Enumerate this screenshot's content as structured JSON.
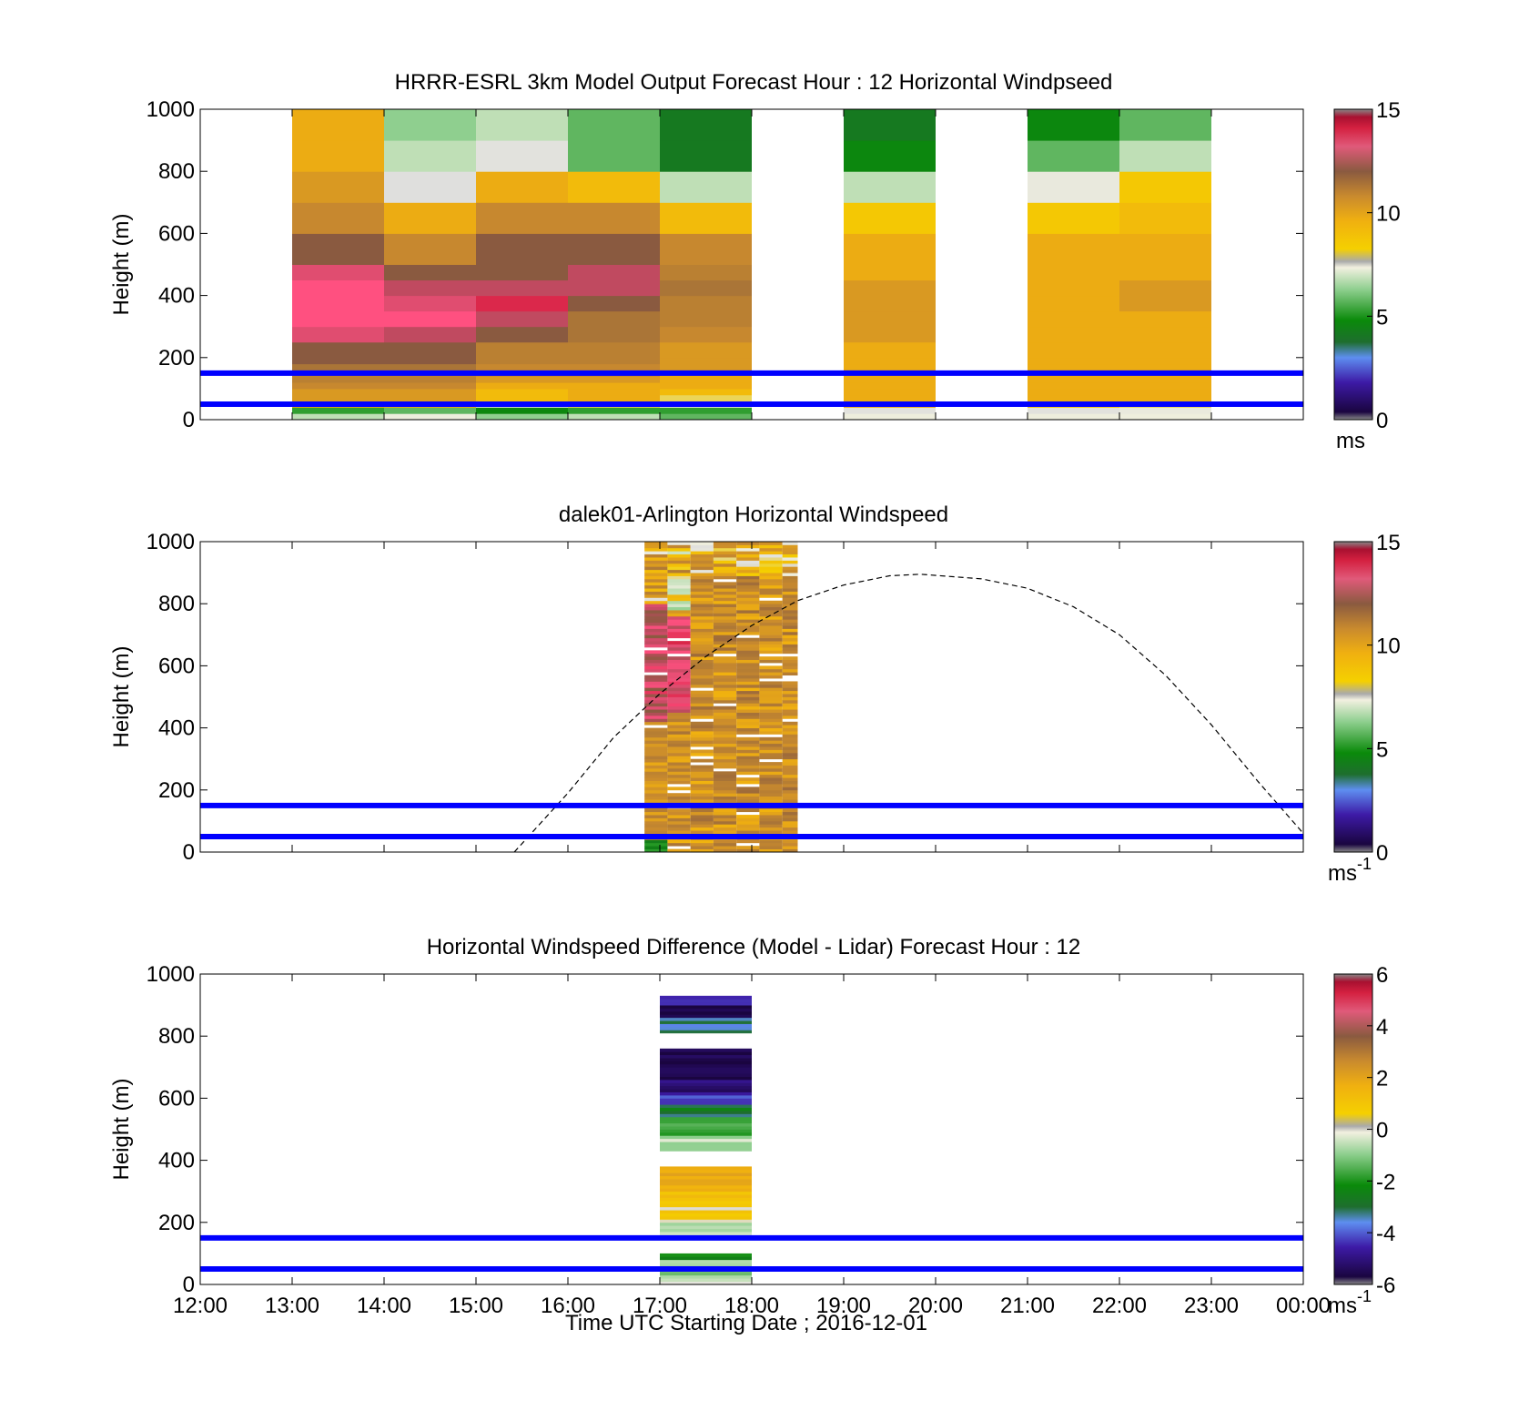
{
  "figure": {
    "xlabel": "Time UTC  Starting Date ; 2016-12-01",
    "x_ticks": [
      "12:00",
      "13:00",
      "14:00",
      "15:00",
      "16:00",
      "17:00",
      "18:00",
      "19:00",
      "20:00",
      "21:00",
      "22:00",
      "23:00",
      "00:00"
    ],
    "y_ticks": [
      "0",
      "200",
      "400",
      "600",
      "800",
      "1000"
    ],
    "reference_line_color": "#0000ff",
    "reference_line_heights_m": [
      50,
      150
    ]
  },
  "panels": [
    {
      "title": "HRRR-ESRL 3km Model Output   Forecast Hour : 12 Horizontal Windpseed",
      "ylabel": "Height (m)",
      "colorbar": {
        "ticks": [
          "0",
          "5",
          "10",
          "15"
        ],
        "unit": "ms",
        "unit_sup": ""
      }
    },
    {
      "title": "dalek01-Arlington  Horizontal Windspeed",
      "ylabel": "Height (m)",
      "colorbar": {
        "ticks": [
          "0",
          "5",
          "10",
          "15"
        ],
        "unit": "ms",
        "unit_sup": "-1"
      }
    },
    {
      "title": "Horizontal Windspeed Difference (Model - Lidar) Forecast Hour : 12",
      "ylabel": "Height (m)",
      "colorbar": {
        "ticks": [
          "-6",
          "-4",
          "-2",
          "0",
          "2",
          "4",
          "6"
        ],
        "unit": "ms",
        "unit_sup": "-1"
      }
    }
  ],
  "chart_data": [
    {
      "type": "heatmap",
      "title": "HRRR-ESRL 3km Model Output   Forecast Hour : 12 Horizontal Windpseed",
      "xlabel": "",
      "ylabel": "Height (m)",
      "x_range": [
        "12:00",
        "00:00"
      ],
      "ylim": [
        0,
        1000
      ],
      "colorbar_range": [
        0,
        15
      ],
      "colorbar_unit": "ms",
      "cell_duration_hours": 1,
      "height_levels_m": [
        0,
        20,
        40,
        60,
        80,
        100,
        120,
        140,
        160,
        180,
        200,
        250,
        300,
        350,
        400,
        450,
        500,
        600,
        700,
        800,
        900,
        1000
      ],
      "columns": [
        {
          "start": "13:00",
          "values": [
            6.5,
            5,
            9.5,
            10,
            10,
            10.5,
            11,
            11,
            11.5,
            12,
            12,
            13.5,
            14,
            14,
            14,
            13.5,
            12,
            10.5,
            10,
            9.5,
            9.5
          ]
        },
        {
          "start": "14:00",
          "values": [
            7,
            5.5,
            9.5,
            10,
            10,
            10.5,
            11,
            11,
            11.5,
            12,
            12,
            13,
            14,
            13.5,
            13,
            12,
            10.5,
            9.5,
            7.6,
            6.5,
            6
          ]
        },
        {
          "start": "15:00",
          "values": [
            6,
            4.5,
            7.5,
            9,
            9,
            9.5,
            10,
            10.5,
            10.5,
            11,
            11,
            12,
            13,
            14.5,
            13,
            12,
            12,
            10.5,
            9.5,
            7.5,
            6.5
          ]
        },
        {
          "start": "16:00",
          "values": [
            6.5,
            5,
            8,
            9.5,
            9.5,
            9.5,
            10,
            10.5,
            10.5,
            11,
            11,
            11.5,
            11.5,
            12,
            13,
            13,
            12,
            10.5,
            9,
            5.5,
            5.5
          ]
        },
        {
          "start": "17:00",
          "values": [
            5.5,
            5,
            7,
            8,
            9,
            9.5,
            9.5,
            9.5,
            10,
            10,
            10,
            10.5,
            11,
            11,
            11.5,
            11,
            10.5,
            9,
            6.5,
            4,
            4
          ]
        },
        {
          "start": "19:00",
          "values": [
            7,
            7.5,
            9.5,
            9.5,
            9.5,
            9.5,
            9.5,
            9.5,
            9.5,
            9.5,
            9.5,
            10,
            10,
            10,
            10,
            9.5,
            9.5,
            8.5,
            6.5,
            4.5,
            4
          ]
        },
        {
          "start": "21:00",
          "values": [
            7,
            7.5,
            8.5,
            9.5,
            9.5,
            9.5,
            9.5,
            9.5,
            9.5,
            9.5,
            9.5,
            9.5,
            9.5,
            9.5,
            9.5,
            9.5,
            9.5,
            8.5,
            7.2,
            5.5,
            4.5
          ]
        },
        {
          "start": "22:00",
          "values": [
            7,
            7.2,
            8,
            9.5,
            9.5,
            9.5,
            9.5,
            9.5,
            9.5,
            9.5,
            9.5,
            9.5,
            9.5,
            10,
            10,
            9.5,
            9.5,
            9,
            8.5,
            6.5,
            5.5
          ]
        }
      ]
    },
    {
      "type": "heatmap",
      "title": "dalek01-Arlington  Horizontal Windspeed",
      "xlabel": "",
      "ylabel": "Height (m)",
      "x_range": [
        "12:00",
        "00:00"
      ],
      "ylim": [
        0,
        1000
      ],
      "colorbar_range": [
        0,
        15
      ],
      "colorbar_unit": "ms-1",
      "observation_window": [
        "16:50",
        "18:30"
      ],
      "profiles": [
        {
          "start": "16:50",
          "end": "17:05",
          "summary": "near-surface 4-6 m/s; 100-400 m about 10-11; 450-800 m about 12-14.5; above 800 m mixed 7-11"
        },
        {
          "start": "17:05",
          "end": "17:20",
          "summary": "mostly 9-11 m/s below 450 m; 450-750 m about 13-14.5; mixed 6-12 above"
        },
        {
          "start": "17:20",
          "end": "17:35",
          "summary": "about 9.5-11.5 m/s throughout"
        },
        {
          "start": "17:35",
          "end": "17:50",
          "summary": "about 10-11.5 m/s throughout"
        },
        {
          "start": "17:50",
          "end": "18:05",
          "summary": "about 10-11.5 m/s throughout"
        },
        {
          "start": "18:05",
          "end": "18:20",
          "summary": "about 9.5-11 m/s throughout"
        },
        {
          "start": "18:20",
          "end": "18:30",
          "summary": "about 9.5-10.5 m/s throughout"
        }
      ],
      "dashed_curve": {
        "x": [
          "15:25",
          "16:00",
          "16:30",
          "17:00",
          "17:30",
          "18:00",
          "18:30",
          "19:00",
          "19:30",
          "19:50",
          "20:30",
          "21:00",
          "21:30",
          "22:00",
          "22:30",
          "23:00",
          "23:30",
          "00:00"
        ],
        "y": [
          0,
          190,
          370,
          510,
          630,
          730,
          810,
          860,
          890,
          895,
          880,
          850,
          790,
          700,
          570,
          410,
          230,
          60
        ]
      }
    },
    {
      "type": "heatmap",
      "title": "Horizontal Windspeed Difference (Model - Lidar) Forecast Hour : 12",
      "xlabel": "Time UTC  Starting Date ; 2016-12-01",
      "ylabel": "Height (m)",
      "x_range": [
        "12:00",
        "00:00"
      ],
      "ylim": [
        0,
        1000
      ],
      "colorbar_range": [
        -6,
        6
      ],
      "colorbar_unit": "ms-1",
      "columns": [
        {
          "start": "17:00",
          "end": "18:00",
          "ranges": [
            {
              "from": 0,
              "to": 20,
              "value": -0.5
            },
            {
              "from": 20,
              "to": 40,
              "value": -1.2
            },
            {
              "from": 40,
              "to": 60,
              "value": -1.5
            },
            {
              "from": 60,
              "to": 80,
              "value": -1.0
            },
            {
              "from": 80,
              "to": 100,
              "value": -2.2
            },
            {
              "from": 160,
              "to": 200,
              "value": -0.8
            },
            {
              "from": 200,
              "to": 250,
              "value": 0.6
            },
            {
              "from": 250,
              "to": 300,
              "value": 1.0
            },
            {
              "from": 300,
              "to": 380,
              "value": 1.5
            },
            {
              "from": 430,
              "to": 480,
              "value": -0.8
            },
            {
              "from": 480,
              "to": 540,
              "value": -2.0
            },
            {
              "from": 540,
              "to": 580,
              "value": -3.0
            },
            {
              "from": 580,
              "to": 620,
              "value": -4.5
            },
            {
              "from": 620,
              "to": 660,
              "value": -5.5
            },
            {
              "from": 660,
              "to": 760,
              "value": -6.0
            },
            {
              "from": 810,
              "to": 860,
              "value": -3.5
            },
            {
              "from": 860,
              "to": 900,
              "value": -6.0
            },
            {
              "from": 900,
              "to": 930,
              "value": -5.0
            }
          ]
        }
      ]
    }
  ]
}
